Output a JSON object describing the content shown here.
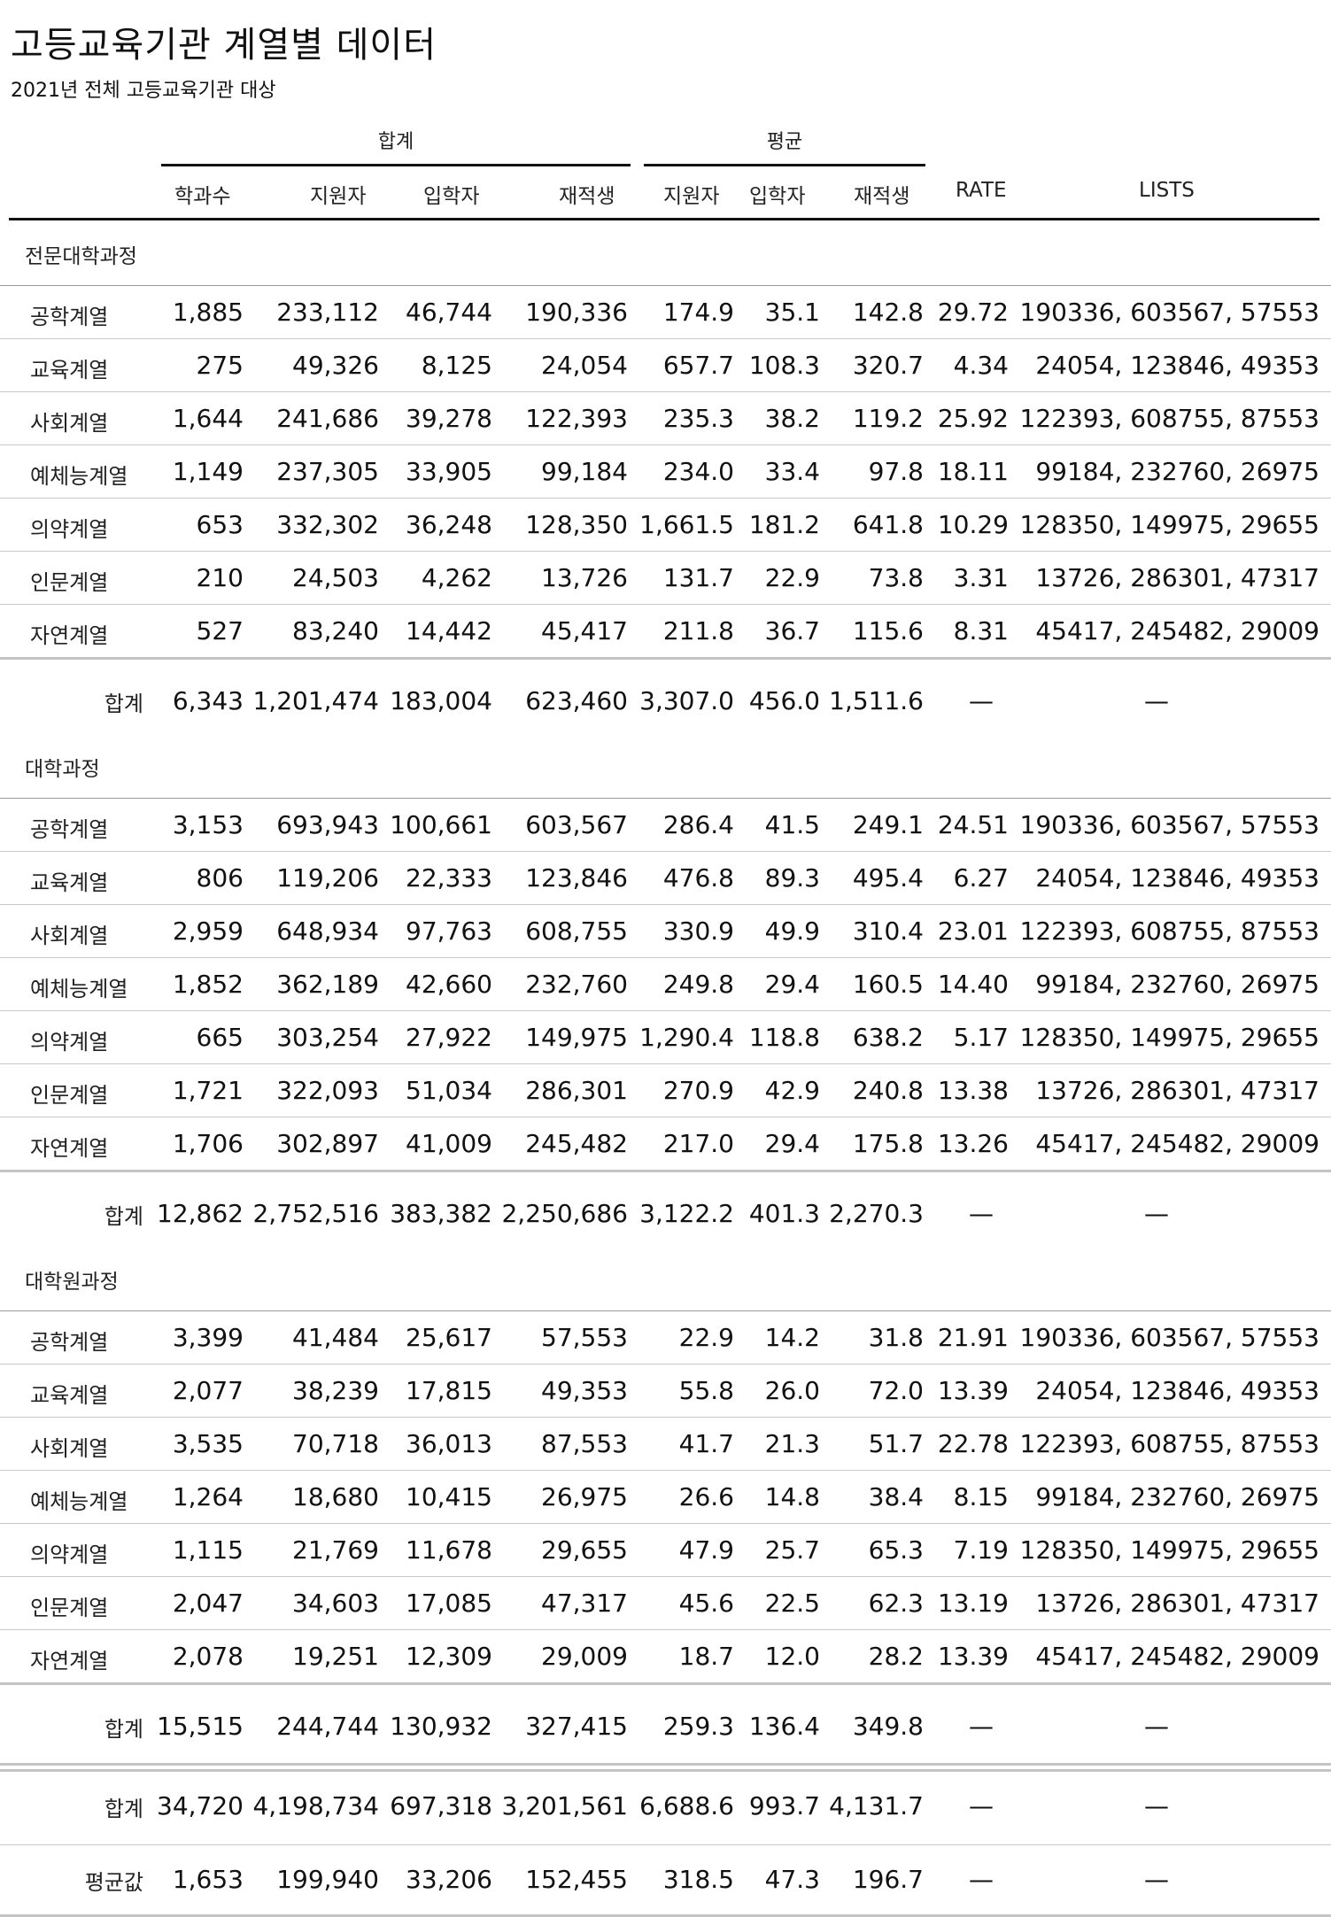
{
  "title": "고등교육기관 계열별 데이터",
  "subtitle": "2021년 전체 고등교육기관 대상",
  "groups": {
    "sum": "합계",
    "avg": "평균"
  },
  "columns": [
    "학과수",
    "지원자",
    "입학자",
    "재적생",
    "지원자",
    "입학자",
    "재적생",
    "RATE",
    "LISTS"
  ],
  "dash": "—",
  "sections": [
    {
      "title": "전문대학과정",
      "rows": [
        {
          "label": "공학계열",
          "v": [
            "1,885",
            "233,112",
            "46,744",
            "190,336",
            "174.9",
            "35.1",
            "142.8",
            "29.72",
            "190336, 603567, 57553"
          ]
        },
        {
          "label": "교육계열",
          "v": [
            "275",
            "49,326",
            "8,125",
            "24,054",
            "657.7",
            "108.3",
            "320.7",
            "4.34",
            "24054, 123846, 49353"
          ]
        },
        {
          "label": "사회계열",
          "v": [
            "1,644",
            "241,686",
            "39,278",
            "122,393",
            "235.3",
            "38.2",
            "119.2",
            "25.92",
            "122393, 608755, 87553"
          ]
        },
        {
          "label": "예체능계열",
          "v": [
            "1,149",
            "237,305",
            "33,905",
            "99,184",
            "234.0",
            "33.4",
            "97.8",
            "18.11",
            "99184, 232760, 26975"
          ]
        },
        {
          "label": "의약계열",
          "v": [
            "653",
            "332,302",
            "36,248",
            "128,350",
            "1,661.5",
            "181.2",
            "641.8",
            "10.29",
            "128350, 149975, 29655"
          ]
        },
        {
          "label": "인문계열",
          "v": [
            "210",
            "24,503",
            "4,262",
            "13,726",
            "131.7",
            "22.9",
            "73.8",
            "3.31",
            "13726, 286301, 47317"
          ]
        },
        {
          "label": "자연계열",
          "v": [
            "527",
            "83,240",
            "14,442",
            "45,417",
            "211.8",
            "36.7",
            "115.6",
            "8.31",
            "45417, 245482, 29009"
          ]
        }
      ],
      "total": {
        "label": "합계",
        "v": [
          "6,343",
          "1,201,474",
          "183,004",
          "623,460",
          "3,307.0",
          "456.0",
          "1,511.6"
        ]
      }
    },
    {
      "title": "대학과정",
      "rows": [
        {
          "label": "공학계열",
          "v": [
            "3,153",
            "693,943",
            "100,661",
            "603,567",
            "286.4",
            "41.5",
            "249.1",
            "24.51",
            "190336, 603567, 57553"
          ]
        },
        {
          "label": "교육계열",
          "v": [
            "806",
            "119,206",
            "22,333",
            "123,846",
            "476.8",
            "89.3",
            "495.4",
            "6.27",
            "24054, 123846, 49353"
          ]
        },
        {
          "label": "사회계열",
          "v": [
            "2,959",
            "648,934",
            "97,763",
            "608,755",
            "330.9",
            "49.9",
            "310.4",
            "23.01",
            "122393, 608755, 87553"
          ]
        },
        {
          "label": "예체능계열",
          "v": [
            "1,852",
            "362,189",
            "42,660",
            "232,760",
            "249.8",
            "29.4",
            "160.5",
            "14.40",
            "99184, 232760, 26975"
          ]
        },
        {
          "label": "의약계열",
          "v": [
            "665",
            "303,254",
            "27,922",
            "149,975",
            "1,290.4",
            "118.8",
            "638.2",
            "5.17",
            "128350, 149975, 29655"
          ]
        },
        {
          "label": "인문계열",
          "v": [
            "1,721",
            "322,093",
            "51,034",
            "286,301",
            "270.9",
            "42.9",
            "240.8",
            "13.38",
            "13726, 286301, 47317"
          ]
        },
        {
          "label": "자연계열",
          "v": [
            "1,706",
            "302,897",
            "41,009",
            "245,482",
            "217.0",
            "29.4",
            "175.8",
            "13.26",
            "45417, 245482, 29009"
          ]
        }
      ],
      "total": {
        "label": "합계",
        "v": [
          "12,862",
          "2,752,516",
          "383,382",
          "2,250,686",
          "3,122.2",
          "401.3",
          "2,270.3"
        ]
      }
    },
    {
      "title": "대학원과정",
      "rows": [
        {
          "label": "공학계열",
          "v": [
            "3,399",
            "41,484",
            "25,617",
            "57,553",
            "22.9",
            "14.2",
            "31.8",
            "21.91",
            "190336, 603567, 57553"
          ]
        },
        {
          "label": "교육계열",
          "v": [
            "2,077",
            "38,239",
            "17,815",
            "49,353",
            "55.8",
            "26.0",
            "72.0",
            "13.39",
            "24054, 123846, 49353"
          ]
        },
        {
          "label": "사회계열",
          "v": [
            "3,535",
            "70,718",
            "36,013",
            "87,553",
            "41.7",
            "21.3",
            "51.7",
            "22.78",
            "122393, 608755, 87553"
          ]
        },
        {
          "label": "예체능계열",
          "v": [
            "1,264",
            "18,680",
            "10,415",
            "26,975",
            "26.6",
            "14.8",
            "38.4",
            "8.15",
            "99184, 232760, 26975"
          ]
        },
        {
          "label": "의약계열",
          "v": [
            "1,115",
            "21,769",
            "11,678",
            "29,655",
            "47.9",
            "25.7",
            "65.3",
            "7.19",
            "128350, 149975, 29655"
          ]
        },
        {
          "label": "인문계열",
          "v": [
            "2,047",
            "34,603",
            "17,085",
            "47,317",
            "45.6",
            "22.5",
            "62.3",
            "13.19",
            "13726, 286301, 47317"
          ]
        },
        {
          "label": "자연계열",
          "v": [
            "2,078",
            "19,251",
            "12,309",
            "29,009",
            "18.7",
            "12.0",
            "28.2",
            "13.39",
            "45417, 245482, 29009"
          ]
        }
      ],
      "total": {
        "label": "합계",
        "v": [
          "15,515",
          "244,744",
          "130,932",
          "327,415",
          "259.3",
          "136.4",
          "349.8"
        ]
      }
    }
  ],
  "grand_total": {
    "label": "합계",
    "v": [
      "34,720",
      "4,198,734",
      "697,318",
      "3,201,561",
      "6,688.6",
      "993.7",
      "4,131.7"
    ]
  },
  "grand_average": {
    "label": "평균값",
    "v": [
      "1,653",
      "199,940",
      "33,206",
      "152,455",
      "318.5",
      "47.3",
      "196.7"
    ]
  }
}
